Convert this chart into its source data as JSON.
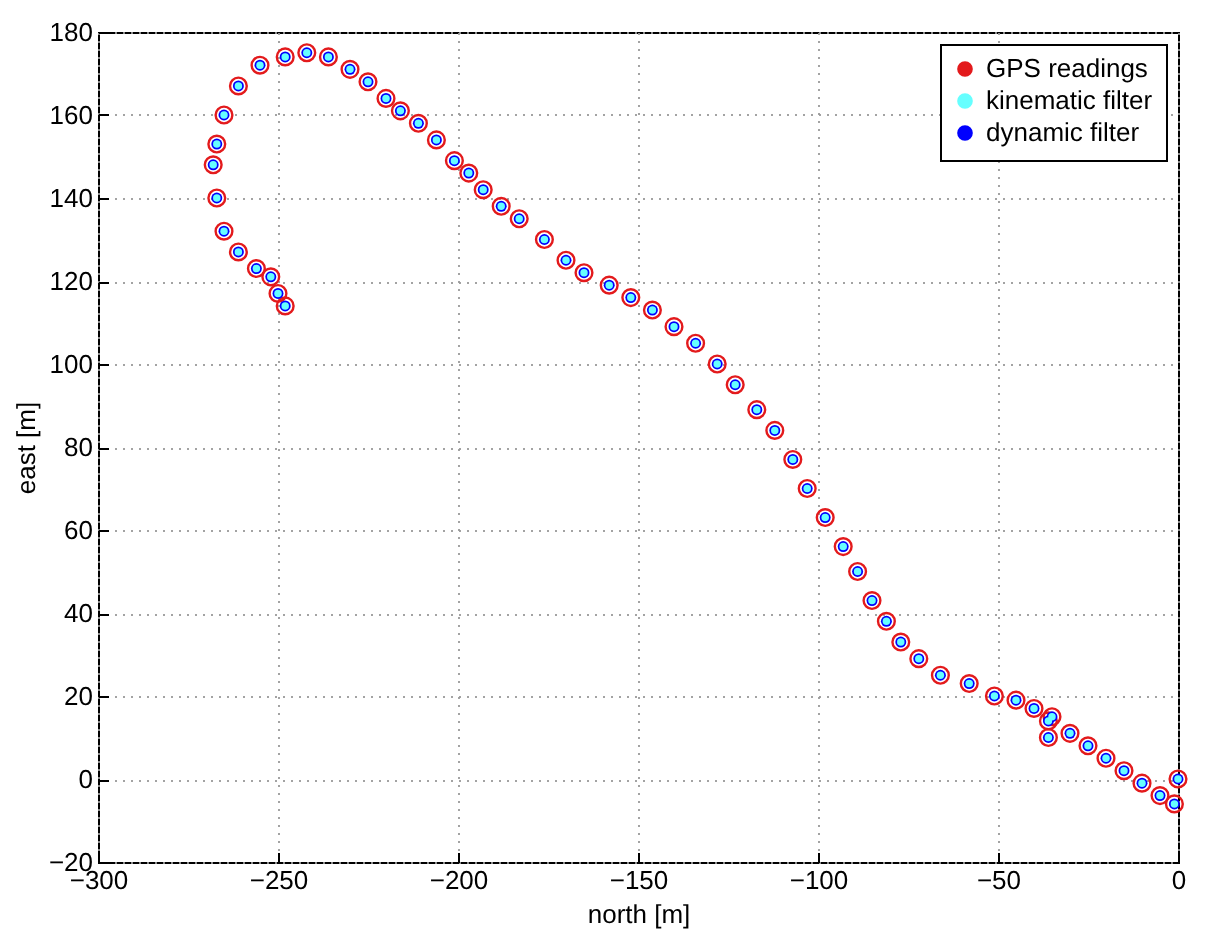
{
  "chart_data": {
    "type": "scatter",
    "xlabel": "north [m]",
    "ylabel": "east [m]",
    "xlim": [
      -300,
      0
    ],
    "xticks": [
      -300,
      -250,
      -200,
      -150,
      -100,
      -50,
      0
    ],
    "ylim": [
      -20,
      180
    ],
    "yticks": [
      -20,
      0,
      20,
      40,
      60,
      80,
      100,
      120,
      140,
      160,
      180
    ],
    "grid": true,
    "legend": "top right",
    "marker": "circle",
    "x": [
      0,
      -1,
      -5,
      -10,
      -15,
      -20,
      -25,
      -30,
      -35,
      -36,
      -36,
      -40,
      -45,
      -51,
      -58,
      -66,
      -72,
      -77,
      -81,
      -85,
      -89,
      -93,
      -98,
      -103,
      -107,
      -112,
      -117,
      -123,
      -128,
      -134,
      -140,
      -146,
      -152,
      -158,
      -165,
      -170,
      -176,
      -183,
      -188,
      -193,
      -197,
      -201,
      -206,
      -211,
      -216,
      -220,
      -225,
      -230,
      -236,
      -242,
      -248,
      -255,
      -261,
      -265,
      -267,
      -268,
      -267,
      -265,
      -261,
      -256,
      -252,
      -250,
      -248
    ],
    "series": [
      {
        "name": "GPS readings",
        "color": "#e31a1c",
        "values": [
          0,
          -6,
          -4,
          -1,
          2,
          5,
          8,
          11,
          15,
          10,
          14,
          17,
          19,
          20,
          23,
          25,
          29,
          33,
          38,
          43,
          50,
          56,
          63,
          70,
          77,
          84,
          89,
          95,
          100,
          105,
          109,
          113,
          116,
          119,
          122,
          125,
          130,
          135,
          138,
          142,
          146,
          149,
          154,
          158,
          161,
          164,
          168,
          171,
          174,
          175,
          174,
          172,
          167,
          160,
          153,
          148,
          140,
          132,
          127,
          123,
          121,
          117,
          114
        ]
      },
      {
        "name": "kinematic filter",
        "color": "#66ffff",
        "values": [
          0,
          -6,
          -4,
          -1,
          2,
          5,
          8,
          11,
          15,
          10,
          14,
          17,
          19,
          20,
          23,
          25,
          29,
          33,
          38,
          43,
          50,
          56,
          63,
          70,
          77,
          84,
          89,
          95,
          100,
          105,
          109,
          113,
          116,
          119,
          122,
          125,
          130,
          135,
          138,
          142,
          146,
          149,
          154,
          158,
          161,
          164,
          168,
          171,
          174,
          175,
          174,
          172,
          167,
          160,
          153,
          148,
          140,
          132,
          127,
          123,
          121,
          117,
          114
        ]
      },
      {
        "name": "dynamic filter",
        "color": "#0000ff",
        "values": [
          0,
          -6,
          -4,
          -1,
          2,
          5,
          8,
          11,
          15,
          10,
          14,
          17,
          19,
          20,
          23,
          25,
          29,
          33,
          38,
          43,
          50,
          56,
          63,
          70,
          77,
          84,
          89,
          95,
          100,
          105,
          109,
          113,
          116,
          119,
          122,
          125,
          130,
          135,
          138,
          142,
          146,
          149,
          154,
          158,
          161,
          164,
          168,
          171,
          174,
          175,
          174,
          172,
          167,
          160,
          153,
          148,
          140,
          132,
          127,
          123,
          121,
          117,
          114
        ]
      }
    ]
  }
}
